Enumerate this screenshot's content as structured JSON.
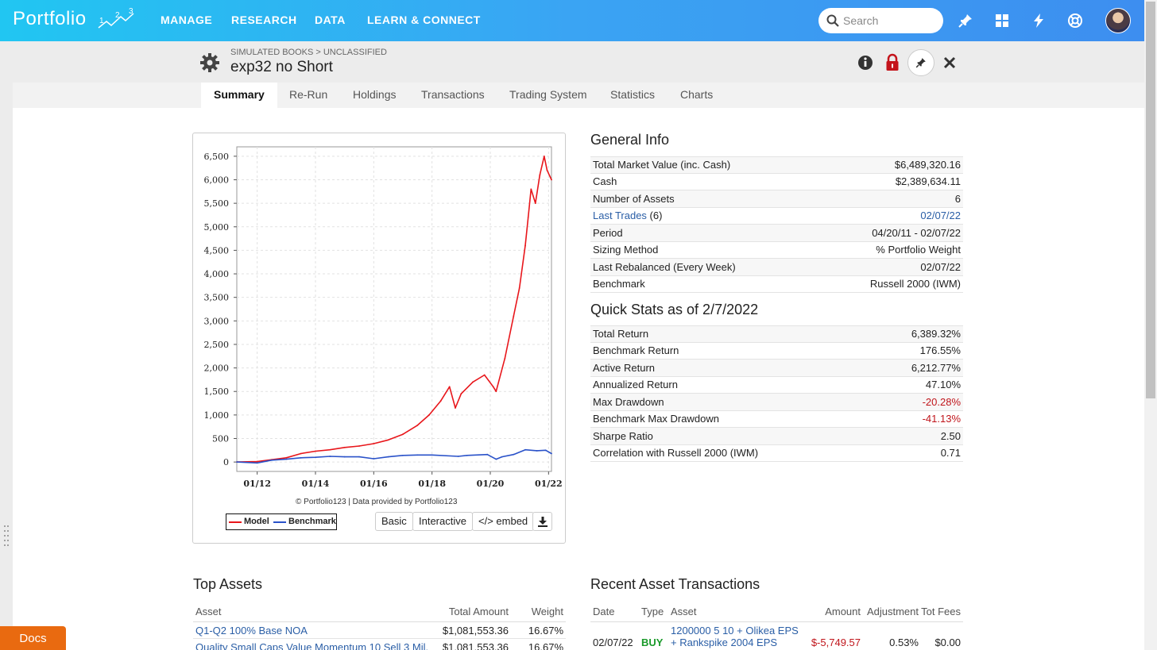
{
  "app": {
    "logo": "Portfolio"
  },
  "nav": [
    "MANAGE",
    "RESEARCH",
    "DATA",
    "LEARN & CONNECT"
  ],
  "search": {
    "placeholder": "Search"
  },
  "header": {
    "breadcrumb": "SIMULATED BOOKS > UNCLASSIFIED",
    "title": "exp32 no Short"
  },
  "tabs": [
    "Summary",
    "Re-Run",
    "Holdings",
    "Transactions",
    "Trading System",
    "Statistics",
    "Charts"
  ],
  "chart_data": {
    "type": "line",
    "x": [
      "01/12",
      "01/14",
      "01/16",
      "01/18",
      "01/20",
      "01/22"
    ],
    "ylim": [
      -200,
      6700
    ],
    "yticks": [
      0,
      500,
      1000,
      1500,
      2000,
      2500,
      3000,
      3500,
      4000,
      4500,
      5000,
      5500,
      6000,
      6500
    ],
    "xrange": [
      2011.3,
      2022.1
    ],
    "grid": true,
    "legend_placement": "bottom-left",
    "series": [
      {
        "name": "Model",
        "color": "#e8161b",
        "points": [
          [
            2011.3,
            0
          ],
          [
            2012.0,
            10
          ],
          [
            2012.5,
            50
          ],
          [
            2013.0,
            90
          ],
          [
            2013.5,
            180
          ],
          [
            2014.0,
            230
          ],
          [
            2014.5,
            260
          ],
          [
            2015.0,
            310
          ],
          [
            2015.5,
            340
          ],
          [
            2016.0,
            390
          ],
          [
            2016.5,
            470
          ],
          [
            2017.0,
            590
          ],
          [
            2017.5,
            780
          ],
          [
            2017.9,
            1000
          ],
          [
            2018.3,
            1300
          ],
          [
            2018.6,
            1600
          ],
          [
            2018.8,
            1150
          ],
          [
            2019.0,
            1450
          ],
          [
            2019.4,
            1700
          ],
          [
            2019.8,
            1850
          ],
          [
            2020.1,
            1600
          ],
          [
            2020.2,
            1500
          ],
          [
            2020.5,
            2200
          ],
          [
            2020.8,
            3100
          ],
          [
            2021.0,
            3700
          ],
          [
            2021.2,
            4600
          ],
          [
            2021.3,
            5200
          ],
          [
            2021.4,
            5800
          ],
          [
            2021.55,
            5500
          ],
          [
            2021.7,
            6100
          ],
          [
            2021.85,
            6500
          ],
          [
            2021.95,
            6200
          ],
          [
            2022.1,
            6000
          ]
        ]
      },
      {
        "name": "Benchmark",
        "color": "#2a52c9",
        "points": [
          [
            2011.3,
            0
          ],
          [
            2012.0,
            -20
          ],
          [
            2012.5,
            40
          ],
          [
            2013.0,
            60
          ],
          [
            2013.5,
            90
          ],
          [
            2014.0,
            100
          ],
          [
            2014.5,
            120
          ],
          [
            2015.0,
            110
          ],
          [
            2015.5,
            110
          ],
          [
            2016.0,
            70
          ],
          [
            2016.5,
            110
          ],
          [
            2017.0,
            140
          ],
          [
            2017.5,
            150
          ],
          [
            2018.0,
            150
          ],
          [
            2018.9,
            120
          ],
          [
            2019.2,
            140
          ],
          [
            2019.9,
            160
          ],
          [
            2020.2,
            60
          ],
          [
            2020.4,
            110
          ],
          [
            2020.8,
            160
          ],
          [
            2021.2,
            260
          ],
          [
            2021.6,
            240
          ],
          [
            2021.9,
            250
          ],
          [
            2022.1,
            180
          ]
        ]
      }
    ]
  },
  "chart_meta": {
    "credit": "© Portfolio123 | Data provided by Portfolio123",
    "buttons": [
      "Basic",
      "Interactive",
      "</> embed"
    ]
  },
  "general_info": {
    "heading": "General Info",
    "rows": [
      {
        "label": "Total Market Value (inc. Cash)",
        "value": "$6,489,320.16"
      },
      {
        "label": "Cash",
        "value": "$2,389,634.11"
      },
      {
        "label": "Number of Assets",
        "value": "6"
      },
      {
        "label": "Last Trades",
        "suffix": " (6)",
        "value": "02/07/22",
        "link": true
      },
      {
        "label": "Period",
        "value": "04/20/11 - 02/07/22"
      },
      {
        "label": "Sizing Method",
        "value": "% Portfolio Weight"
      },
      {
        "label": "Last Rebalanced (Every Week)",
        "value": "02/07/22"
      },
      {
        "label": "Benchmark",
        "value": "Russell 2000 (IWM)"
      }
    ]
  },
  "quick_stats": {
    "heading": "Quick Stats as of 2/7/2022",
    "rows": [
      {
        "label": "Total Return",
        "value": "6,389.32%"
      },
      {
        "label": "Benchmark Return",
        "value": "176.55%"
      },
      {
        "label": "Active Return",
        "value": "6,212.77%"
      },
      {
        "label": "Annualized Return",
        "value": "47.10%"
      },
      {
        "label": "Max Drawdown",
        "value": "-20.28%",
        "negative": true
      },
      {
        "label": "Benchmark Max Drawdown",
        "value": "-41.13%",
        "negative": true
      },
      {
        "label": "Sharpe Ratio",
        "value": "2.50"
      },
      {
        "label": "Correlation with Russell 2000 (IWM)",
        "value": "0.71"
      }
    ]
  },
  "top_assets": {
    "heading": "Top Assets",
    "columns": [
      "Asset",
      "Total Amount",
      "Weight"
    ],
    "rows": [
      {
        "asset": "Q1-Q2 100% Base NOA",
        "amount": "$1,081,553.36",
        "weight": "16.67%"
      },
      {
        "asset": "Quality Small Caps Value Momentum 10 Sell 3 Mil.",
        "amount": "$1,081,553.36",
        "weight": "16.67%"
      }
    ]
  },
  "recent_transactions": {
    "heading": "Recent Asset Transactions",
    "columns": [
      "Date",
      "Type",
      "Asset",
      "Amount",
      "Adjustment",
      "Tot Fees"
    ],
    "rows": [
      {
        "date": "02/07/22",
        "type": "BUY",
        "asset_line1": "1200000 5 10 + Olikea EPS",
        "asset_line2": "+ Rankspike 2004 EPS",
        "amount": "$-5,749.57",
        "adjustment": "0.53%",
        "fees": "$0.00"
      }
    ]
  },
  "docs": "Docs"
}
